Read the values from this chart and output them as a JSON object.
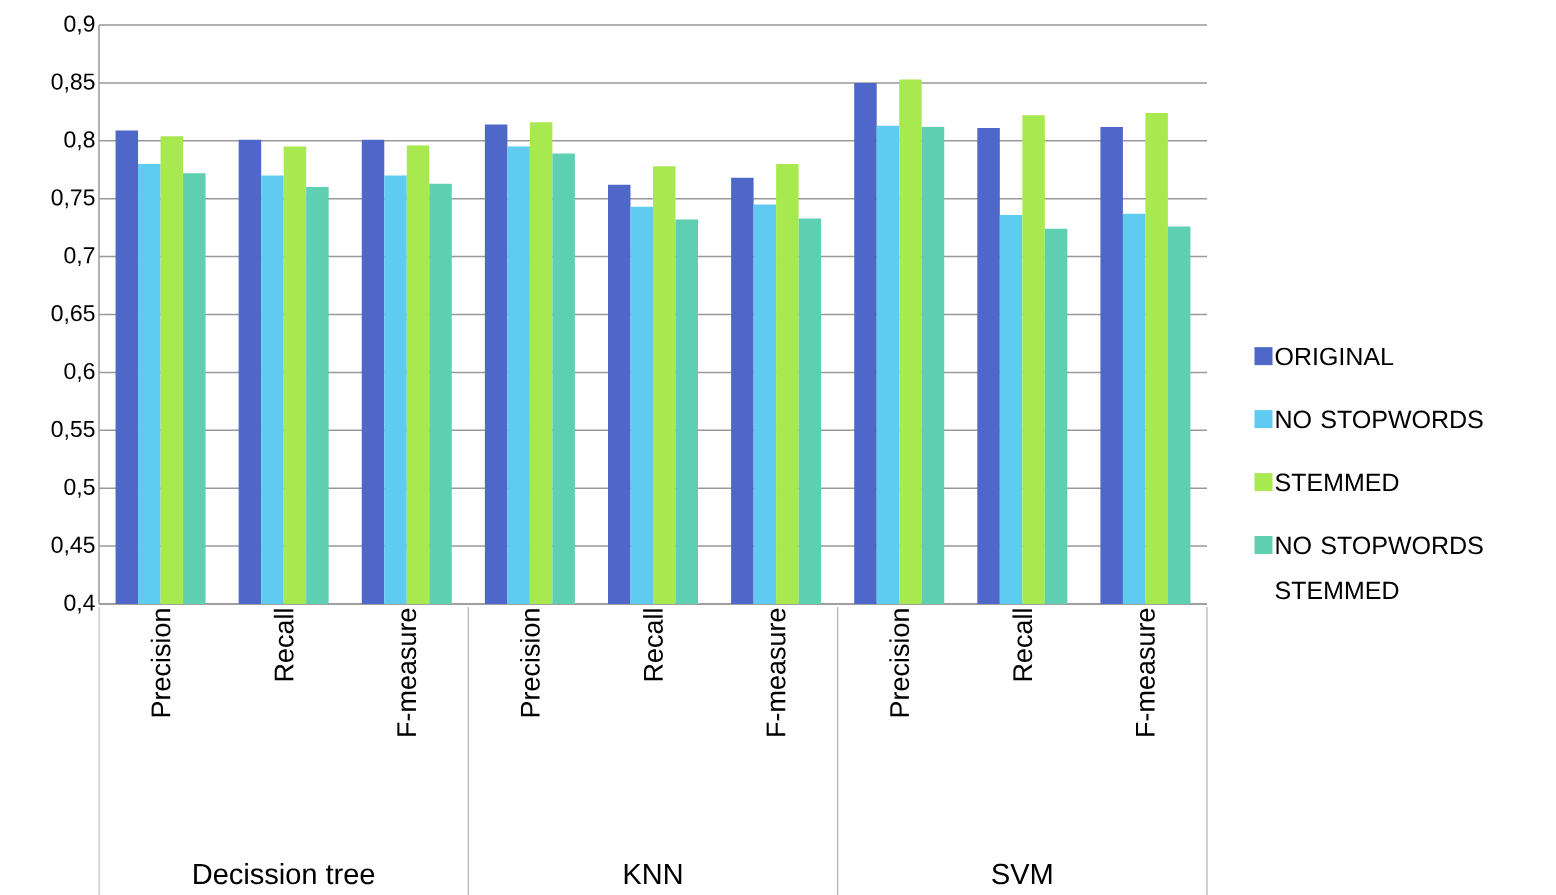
{
  "chart_data": {
    "type": "bar",
    "categories": [
      "Precision",
      "Recall",
      "F-measure",
      "Precision",
      "Recall",
      "F-measure",
      "Precision",
      "Recall",
      "F-measure"
    ],
    "annotations": [
      "Decission tree",
      "KNN",
      "SVM"
    ],
    "series": [
      {
        "name": "ORIGINAL",
        "color": "#4f67c8",
        "values": [
          0.809,
          0.801,
          0.801,
          0.814,
          0.762,
          0.768,
          0.85,
          0.811,
          0.812
        ]
      },
      {
        "name": "NO STOPWORDS",
        "color": "#5fcbf0",
        "values": [
          0.78,
          0.77,
          0.77,
          0.795,
          0.743,
          0.745,
          0.813,
          0.736,
          0.737
        ]
      },
      {
        "name": "STEMMED",
        "color": "#a8e94f",
        "values": [
          0.804,
          0.795,
          0.796,
          0.816,
          0.778,
          0.78,
          0.853,
          0.822,
          0.824
        ]
      },
      {
        "name": "NO STOPWORDS STEMMED",
        "color": "#5ecfb1",
        "values": [
          0.772,
          0.76,
          0.763,
          0.789,
          0.732,
          0.733,
          0.812,
          0.724,
          0.726
        ]
      }
    ],
    "ylim": [
      0.4,
      0.9
    ],
    "yticks": [
      {
        "value": 0.4,
        "label": "0,4"
      },
      {
        "value": 0.45,
        "label": "0,45"
      },
      {
        "value": 0.5,
        "label": "0,5"
      },
      {
        "value": 0.55,
        "label": "0,55"
      },
      {
        "value": 0.6,
        "label": "0,6"
      },
      {
        "value": 0.65,
        "label": "0,65"
      },
      {
        "value": 0.7,
        "label": "0,7"
      },
      {
        "value": 0.75,
        "label": "0,75"
      },
      {
        "value": 0.8,
        "label": "0,8"
      },
      {
        "value": 0.85,
        "label": "0,85"
      },
      {
        "value": 0.9,
        "label": "0,9"
      }
    ],
    "grid": "y",
    "legend": "right"
  }
}
